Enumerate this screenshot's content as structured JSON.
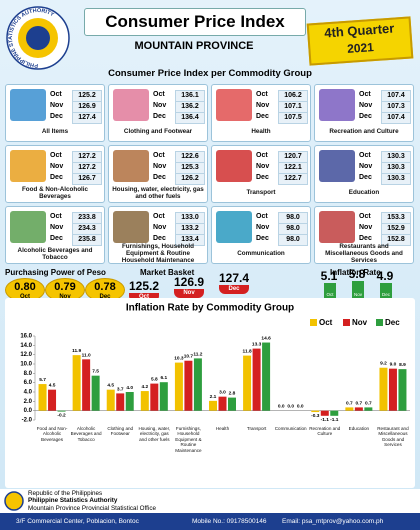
{
  "header": {
    "title": "Consumer Price Index",
    "subtitle": "MOUNTAIN PROVINCE",
    "quarter": "4th Quarter",
    "year": "2021",
    "logo_text": "PHILIPPINE STATISTICS AUTHORITY"
  },
  "cpi": {
    "title": "Consumer Price Index per Commodity Group",
    "months": [
      "Oct",
      "Nov",
      "Dec"
    ],
    "groups": [
      {
        "label": "All Items",
        "values": [
          "125.2",
          "126.9",
          "127.4"
        ]
      },
      {
        "label": "Clothing and Footwear",
        "values": [
          "136.1",
          "136.2",
          "136.4"
        ]
      },
      {
        "label": "Health",
        "values": [
          "106.2",
          "107.1",
          "107.5"
        ]
      },
      {
        "label": "Recreation and Culture",
        "values": [
          "107.4",
          "107.3",
          "107.4"
        ]
      },
      {
        "label": "Food & Non-Alcoholic Beverages",
        "values": [
          "127.2",
          "127.2",
          "126.7"
        ]
      },
      {
        "label": "Housing, water, electricity, gas and other fuels",
        "values": [
          "122.6",
          "125.3",
          "126.2"
        ]
      },
      {
        "label": "Transport",
        "values": [
          "120.7",
          "122.1",
          "122.7"
        ]
      },
      {
        "label": "Education",
        "values": [
          "130.3",
          "130.3",
          "130.3"
        ]
      },
      {
        "label": "Alcoholic Beverages and Tobacco",
        "values": [
          "233.8",
          "234.3",
          "235.8"
        ]
      },
      {
        "label": "Furnishings, Household Equipment & Routine Household Maintenance",
        "values": [
          "133.0",
          "133.2",
          "133.4"
        ]
      },
      {
        "label": "Communication",
        "values": [
          "98.0",
          "98.0",
          "98.0"
        ]
      },
      {
        "label": "Restaurants and Miscellaneous Goods and Services",
        "values": [
          "153.3",
          "152.9",
          "152.8"
        ]
      }
    ]
  },
  "summary": {
    "purchasing_power": {
      "title": "Purchasing Power of Peso",
      "values": [
        "0.80",
        "0.79",
        "0.78"
      ]
    },
    "market_basket": {
      "title": "Market Basket",
      "values": [
        "125.2",
        "126.9",
        "127.4"
      ]
    },
    "inflation_rate": {
      "title": "Inflation Rate",
      "values": [
        "5.1",
        "5.8",
        "4.9"
      ]
    }
  },
  "chart_data": {
    "type": "bar",
    "title": "Inflation Rate by Commodity Group",
    "categories": [
      "Food and Non-Alcoholic Beverages",
      "Alcoholic Beverages and Tobacco",
      "Clothing and Footwear",
      "Housing, water, electricity, gas and other fuels",
      "Furnishings, Household Equipment & Routine Maintenance",
      "Health",
      "Transport",
      "Communication",
      "Recreation and Culture",
      "Education",
      "Restaurant and Miscellaneous Goods and Services"
    ],
    "series": [
      {
        "name": "Oct",
        "color": "#f2c200",
        "values": [
          5.7,
          11.9,
          4.5,
          4.2,
          10.3,
          2.1,
          11.8,
          0,
          -0.3,
          0.7,
          9.2
        ],
        "value_labels": [
          "5.7",
          "11.9",
          "4.5",
          "4.2",
          "10.3",
          "2.1",
          "11.8",
          "0.0",
          "-0.3",
          "0.7",
          "9.2"
        ]
      },
      {
        "name": "Nov",
        "color": "#d42020",
        "values": [
          4.5,
          11.0,
          3.7,
          5.8,
          10.7,
          3.0,
          13.3,
          0,
          -1.1,
          0.7,
          9.0
        ],
        "value_labels": [
          "4.5",
          "11.0",
          "3.7",
          "5.8",
          "10.7",
          "3.0",
          "13.3",
          "0.0",
          "-1.1",
          "0.7",
          "9.0"
        ]
      },
      {
        "name": "Dec",
        "color": "#2e9e3e",
        "values": [
          -0.2,
          7.5,
          4.0,
          6.1,
          11.2,
          2.8,
          14.6,
          0,
          -1.1,
          0.7,
          8.9
        ],
        "value_labels": [
          "-0.2",
          "7.5",
          "4.0",
          "6.1",
          "11.2",
          "2.8",
          "14.6",
          "0.0",
          "-1.1",
          "0.7",
          "8.9"
        ]
      }
    ],
    "ylim": [
      -2,
      16
    ],
    "yticks": [
      {
        "value": -2,
        "label": "-2.0"
      },
      {
        "value": 0,
        "label": "0.0"
      },
      {
        "value": 2,
        "label": "2.0"
      },
      {
        "value": 4,
        "label": "4.0"
      },
      {
        "value": 6,
        "label": "6.0"
      },
      {
        "value": 8,
        "label": "8.0"
      },
      {
        "value": 10,
        "label": "10.0"
      },
      {
        "value": 12,
        "label": "12.0"
      },
      {
        "value": 14,
        "label": "14.0"
      },
      {
        "value": 16,
        "label": "16.0"
      }
    ],
    "grid": false,
    "legend": "top-right"
  },
  "footer": {
    "line1": "Republic of the Philippines",
    "line2": "Philippine Statistics Authority",
    "line3": "Mountain Province Provincial Statistical Office",
    "address": "3/F Commercial Center, Poblacion, Bontoc",
    "mobile": "Mobile No.: 09178500146",
    "email": "Email: psa_mtprov@yahoo.com.ph"
  }
}
